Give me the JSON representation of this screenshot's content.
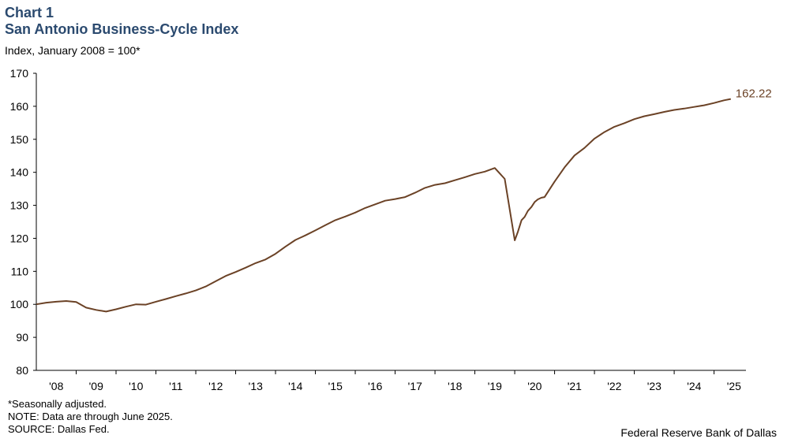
{
  "header": {
    "chart_number": "Chart 1",
    "title": "San Antonio Business-Cycle Index",
    "subtitle": "Index, January 2008 = 100*"
  },
  "footer": {
    "notes": [
      "*Seasonally adjusted.",
      "NOTE: Data are through June 2025.",
      "SOURCE: Dallas Fed."
    ],
    "organization": "Federal Reserve Bank of Dallas"
  },
  "chart_data": {
    "type": "line",
    "title": "San Antonio Business-Cycle Index",
    "ylabel": "Index, January 2008 = 100*",
    "ylim": [
      80,
      170
    ],
    "yticks": [
      80,
      90,
      100,
      110,
      120,
      130,
      140,
      150,
      160,
      170
    ],
    "xlim": [
      2008.0,
      2025.8
    ],
    "xtick_labels": [
      "'08",
      "'09",
      "'10",
      "'11",
      "'12",
      "'13",
      "'14",
      "'15",
      "'16",
      "'17",
      "'18",
      "'19",
      "'20",
      "'21",
      "'22",
      "'23",
      "'24",
      "'25"
    ],
    "grid": false,
    "line_color": "#6b4226",
    "end_label": "162.22",
    "series": [
      {
        "x": [
          2008.0,
          2008.25,
          2008.5,
          2008.75,
          2009.0,
          2009.25,
          2009.5,
          2009.75,
          2010.0,
          2010.25,
          2010.5,
          2010.75,
          2011.0,
          2011.25,
          2011.5,
          2011.75,
          2012.0,
          2012.25,
          2012.5,
          2012.75,
          2013.0,
          2013.25,
          2013.5,
          2013.75,
          2014.0,
          2014.25,
          2014.5,
          2014.75,
          2015.0,
          2015.25,
          2015.5,
          2015.75,
          2016.0,
          2016.25,
          2016.5,
          2016.75,
          2017.0,
          2017.25,
          2017.5,
          2017.75,
          2018.0,
          2018.25,
          2018.5,
          2018.75,
          2019.0,
          2019.25,
          2019.5,
          2019.75,
          2020.0,
          2020.08,
          2020.17,
          2020.25,
          2020.33,
          2020.42,
          2020.5,
          2020.58,
          2020.67,
          2020.75,
          2021.0,
          2021.25,
          2021.5,
          2021.75,
          2022.0,
          2022.25,
          2022.5,
          2022.75,
          2023.0,
          2023.25,
          2023.5,
          2023.75,
          2024.0,
          2024.25,
          2024.5,
          2024.75,
          2025.0,
          2025.25,
          2025.42
        ],
        "values": [
          100.0,
          100.5,
          100.8,
          101.0,
          100.7,
          99.0,
          98.3,
          97.8,
          98.5,
          99.3,
          100.0,
          99.9,
          100.8,
          101.6,
          102.5,
          103.3,
          104.2,
          105.4,
          107.0,
          108.6,
          109.8,
          111.1,
          112.5,
          113.6,
          115.3,
          117.5,
          119.5,
          120.9,
          122.4,
          124.0,
          125.5,
          126.6,
          127.8,
          129.2,
          130.3,
          131.4,
          131.9,
          132.5,
          133.8,
          135.3,
          136.2,
          136.7,
          137.6,
          138.5,
          139.5,
          140.2,
          141.3,
          138.0,
          119.4,
          122.0,
          125.5,
          126.5,
          128.3,
          129.5,
          131.0,
          131.8,
          132.3,
          132.5,
          137.2,
          141.5,
          145.1,
          147.4,
          150.2,
          152.2,
          153.8,
          154.9,
          156.1,
          157.0,
          157.6,
          158.3,
          158.9,
          159.3,
          159.8,
          160.3,
          161.0,
          161.8,
          162.22
        ]
      }
    ]
  }
}
